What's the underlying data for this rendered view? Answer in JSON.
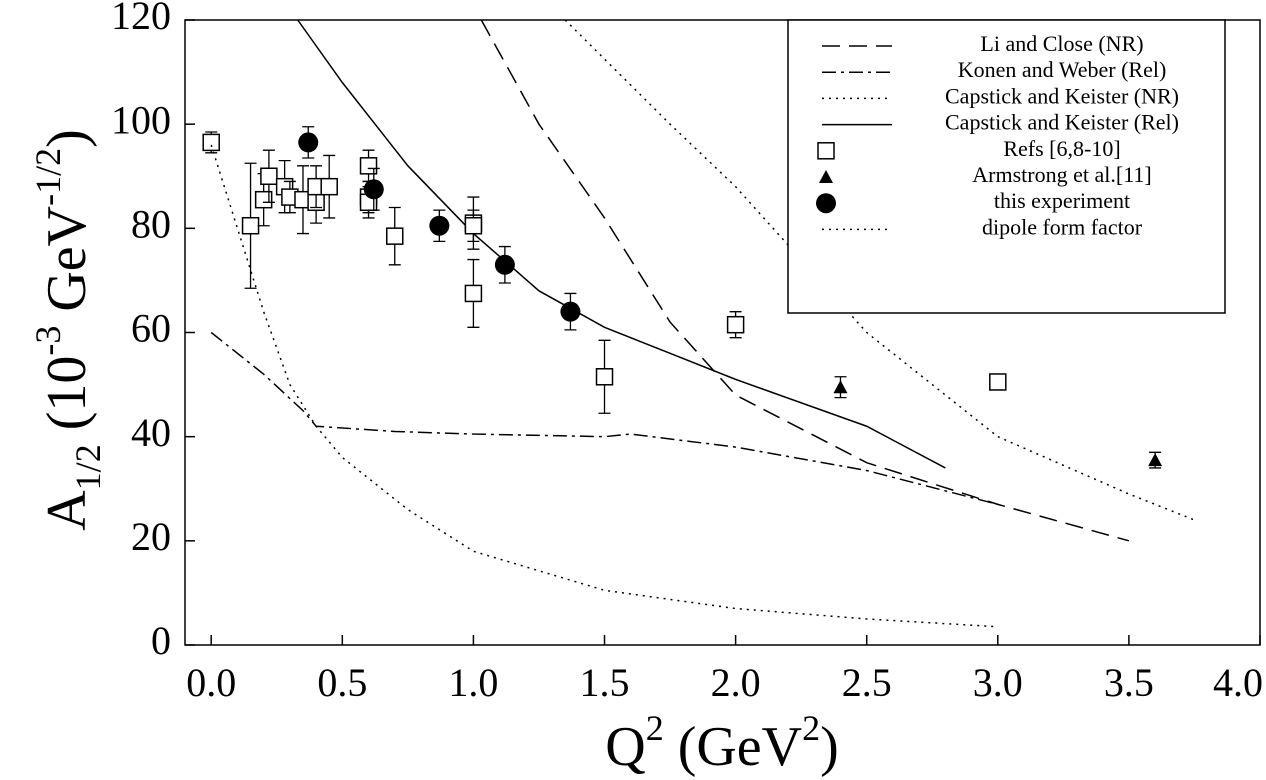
{
  "chart_data": {
    "type": "line",
    "xlabel_parts": [
      "Q",
      "2",
      " (GeV",
      "2",
      ")"
    ],
    "ylabel_parts": [
      "A",
      "1/2",
      " (10",
      "-3",
      " GeV",
      "-1/2",
      ")"
    ],
    "xlim": [
      -0.1,
      4.0
    ],
    "ylim": [
      0,
      120
    ],
    "xticks": [
      {
        "value": 0,
        "label": "0.0"
      },
      0.5,
      {
        "value": 1,
        "label": "1.0"
      },
      1.5,
      {
        "value": 2,
        "label": "2.0"
      },
      2.5,
      {
        "value": 3,
        "label": "3.0"
      },
      3.5,
      {
        "value": 4,
        "label": "4.0"
      }
    ],
    "yticks": [
      0,
      20,
      40,
      60,
      80,
      100,
      120
    ],
    "legend": "upper right",
    "series": [
      {
        "name": "Li and Close (NR)",
        "color": "#000000",
        "line_style": "dash",
        "x": [
          1.03,
          1.25,
          1.5,
          1.75,
          2.0,
          2.5,
          3.0,
          3.5
        ],
        "values": [
          120,
          100,
          82,
          62,
          48,
          35,
          27,
          20
        ]
      },
      {
        "name": "Konen and Weber (Rel)",
        "color": "#000000",
        "line_style": "dashdot",
        "x": [
          0,
          0.2,
          0.35,
          0.4,
          0.7,
          1.0,
          1.5,
          1.6,
          2.0,
          2.5,
          3.0
        ],
        "values": [
          60,
          52,
          45,
          42,
          41,
          40.5,
          40,
          40.5,
          38,
          33.5,
          27
        ]
      },
      {
        "name": "Capstick and Keister (NR)",
        "color": "#000000",
        "line_style": "dot",
        "x": [
          1.35,
          1.75,
          2.0,
          2.5,
          3.0,
          3.5,
          3.75
        ],
        "values": [
          120,
          100,
          88,
          60,
          40,
          29,
          24
        ]
      },
      {
        "name": "Capstick and Keister (Rel)",
        "color": "#000000",
        "line_style": "solid",
        "x": [
          0.33,
          0.5,
          0.75,
          1.0,
          1.25,
          1.5,
          1.75,
          2.0,
          2.5,
          2.8
        ],
        "values": [
          120,
          108,
          92,
          79,
          68,
          61,
          56,
          51,
          42,
          34
        ]
      },
      {
        "name": "Refs [6,8-10]",
        "color": "#000000",
        "marker": "square",
        "x": [
          0.0,
          0.15,
          0.2,
          0.22,
          0.28,
          0.3,
          0.35,
          0.4,
          0.4,
          0.45,
          0.6,
          0.6,
          0.6,
          0.7,
          1.0,
          1.0,
          1.0,
          1.5,
          2.0,
          3.0
        ],
        "values": [
          96.5,
          80.5,
          85.5,
          90,
          88,
          86,
          85.5,
          85,
          88,
          88,
          92,
          86,
          85,
          78.5,
          81,
          80.5,
          67.5,
          51.5,
          61.5,
          50.5
        ],
        "errors": [
          2,
          12,
          5,
          5,
          5,
          3,
          6.5,
          4,
          4,
          6,
          3,
          3,
          3,
          5.5,
          5,
          3,
          6.5,
          7,
          2.5,
          1.5
        ]
      },
      {
        "name": "Armstrong et al.[11]",
        "color": "#000000",
        "marker": "triangle",
        "x": [
          2.4,
          3.6
        ],
        "values": [
          49.5,
          35.5
        ],
        "errors": [
          2,
          1.5
        ]
      },
      {
        "name": "this experiment",
        "color": "#000000",
        "marker": "circle",
        "x": [
          0.37,
          0.62,
          0.87,
          1.12,
          1.37
        ],
        "values": [
          96.5,
          87.5,
          80.5,
          73,
          64
        ],
        "errors": [
          3,
          4,
          3,
          3.5,
          3.5
        ]
      },
      {
        "name": "dipole form factor",
        "color": "#000000",
        "line_style": "dot",
        "x": [
          0,
          0.1,
          0.2,
          0.3,
          0.4,
          0.5,
          0.75,
          1.0,
          1.5,
          2.0,
          2.5,
          3.0
        ],
        "values": [
          96,
          80,
          64,
          50,
          42,
          36,
          26,
          18,
          10.5,
          7,
          5,
          3.5
        ]
      }
    ]
  }
}
